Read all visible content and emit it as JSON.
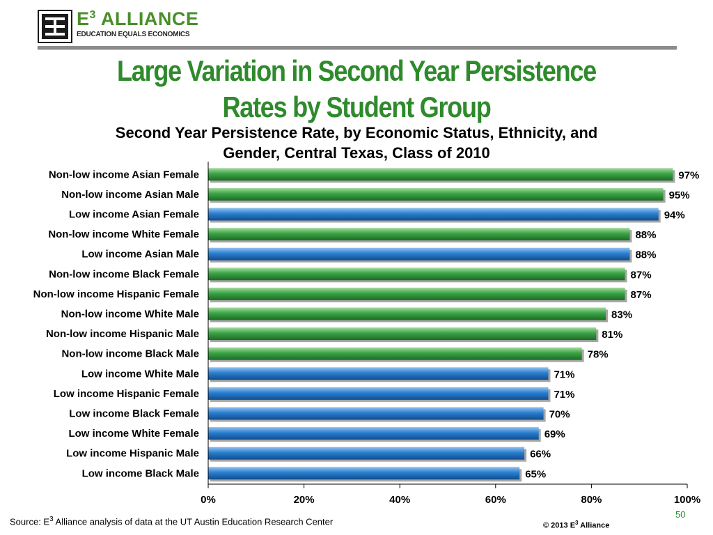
{
  "logo": {
    "name": "E",
    "superscript": "3",
    "name_suffix": " ALLIANCE",
    "tagline": "EDUCATION EQUALS ECONOMICS"
  },
  "slide": {
    "title_line1": "Large Variation in Second Year Persistence",
    "title_line2": "Rates by Student Group",
    "page_number": "50"
  },
  "footer": {
    "source_prefix": "Source: E",
    "source_superscript": "3",
    "source_suffix": " Alliance analysis of data at the UT Austin Education Research Center",
    "copyright_prefix": "© 2013 E",
    "copyright_superscript": "3",
    "copyright_suffix": " Alliance"
  },
  "colors": {
    "title_green": "#2f8a2c",
    "non_low_income_green": "#2f9a3a",
    "low_income_blue": "#1f6fc0"
  },
  "chart_data": {
    "type": "bar",
    "orientation": "horizontal",
    "title_line1": "Second Year Persistence Rate, by Economic Status, Ethnicity, and",
    "title_line2": "Gender, Central Texas, Class of 2010",
    "categories": [
      "Non-low income Asian Female",
      "Non-low income Asian Male",
      "Low income Asian Female",
      "Non-low income White Female",
      "Low income Asian Male",
      "Non-low income Black Female",
      "Non-low income Hispanic Female",
      "Non-low income White Male",
      "Non-low income Hispanic Male",
      "Non-low income Black Male",
      "Low income White Male",
      "Low income Hispanic Female",
      "Low income Black Female",
      "Low income White Female",
      "Low income Hispanic Male",
      "Low income Black Male"
    ],
    "values": [
      0.97,
      0.95,
      0.94,
      0.88,
      0.88,
      0.87,
      0.87,
      0.83,
      0.81,
      0.78,
      0.71,
      0.71,
      0.7,
      0.69,
      0.66,
      0.65
    ],
    "value_labels": [
      "97%",
      "95%",
      "94%",
      "88%",
      "88%",
      "87%",
      "87%",
      "83%",
      "81%",
      "78%",
      "71%",
      "71%",
      "70%",
      "69%",
      "66%",
      "65%"
    ],
    "bar_groups": [
      "non-low",
      "non-low",
      "low",
      "non-low",
      "low",
      "non-low",
      "non-low",
      "non-low",
      "non-low",
      "non-low",
      "low",
      "low",
      "low",
      "low",
      "low",
      "low"
    ],
    "xlim": [
      0,
      1
    ],
    "x_ticks": [
      0,
      0.2,
      0.4,
      0.6,
      0.8,
      1.0
    ],
    "x_tick_labels": [
      "0%",
      "20%",
      "40%",
      "60%",
      "80%",
      "100%"
    ],
    "grid": false,
    "legend": "none"
  }
}
